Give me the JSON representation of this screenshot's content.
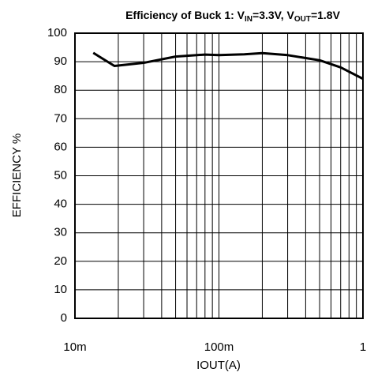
{
  "chart_data": {
    "type": "line",
    "title": [
      "Efficiency of Buck 1: V",
      "IN",
      "=3.3V, V",
      "OUT",
      "=1.8V"
    ],
    "xlabel": "IOUT(A)",
    "ylabel": "EFFICIENCY %",
    "x": [
      0.0134,
      0.0188,
      0.03,
      0.05,
      0.08,
      0.1,
      0.15,
      0.2,
      0.3,
      0.5,
      0.7,
      1.0
    ],
    "values": [
      93.1,
      88.5,
      89.6,
      91.8,
      92.5,
      92.3,
      92.6,
      93,
      92.3,
      90.5,
      88,
      84
    ],
    "color": "#000000",
    "xscale": "log",
    "xlim": [
      0.01,
      1
    ],
    "xticks": [
      {
        "value": 0.01,
        "label": "10m"
      },
      {
        "value": 0.1,
        "label": "100m"
      },
      1
    ],
    "xminorticks": [
      0.02,
      0.03,
      0.04,
      0.05,
      0.06,
      0.07,
      0.08,
      0.09,
      0.2,
      0.3,
      0.4,
      0.5,
      0.6,
      0.7,
      0.8,
      0.9
    ],
    "ylim": [
      0,
      100
    ],
    "yticks": [
      0,
      10,
      20,
      30,
      40,
      50,
      60,
      70,
      80,
      90,
      100
    ],
    "grid": true
  }
}
